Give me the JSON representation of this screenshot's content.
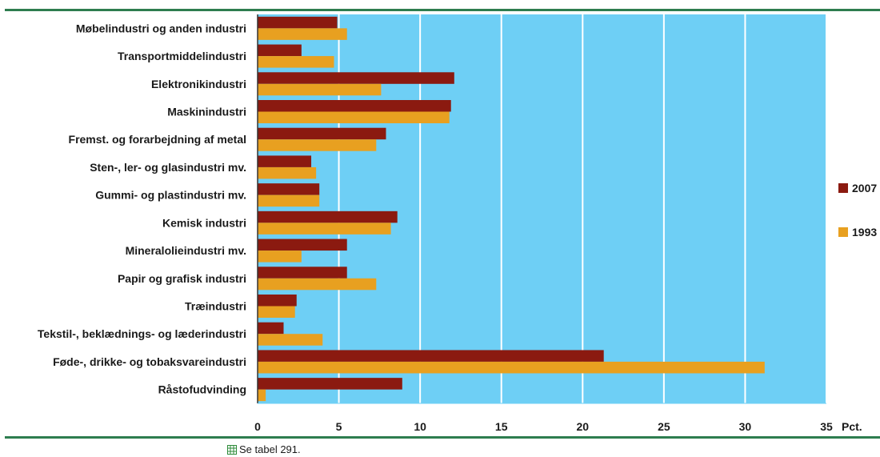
{
  "chart_data": {
    "type": "bar",
    "orientation": "horizontal",
    "categories": [
      "Møbelindustri og anden industri",
      "Transportmiddelindustri",
      "Elektronikindustri",
      "Maskinindustri",
      "Fremst. og forarbejdning af metal",
      "Sten-, ler- og glasindustri mv.",
      "Gummi- og plastindustri mv.",
      "Kemisk industri",
      "Mineralolieindustri mv.",
      "Papir og grafisk industri",
      "Træindustri",
      "Tekstil-, beklædnings- og læderindustri",
      "Føde-, drikke- og tobaksvareindustri",
      "Råstofudvinding"
    ],
    "series": [
      {
        "name": "2007",
        "color": "#8b1a10",
        "values": [
          4.9,
          2.7,
          12.1,
          11.9,
          7.9,
          3.3,
          3.8,
          8.6,
          5.5,
          5.5,
          2.4,
          1.6,
          21.3,
          8.9
        ]
      },
      {
        "name": "1993",
        "color": "#e8a020",
        "values": [
          5.5,
          4.7,
          7.6,
          11.8,
          7.3,
          3.6,
          3.8,
          8.2,
          2.7,
          7.3,
          2.3,
          4.0,
          31.2,
          0.5
        ]
      }
    ],
    "xlim": [
      0,
      35
    ],
    "xticks": [
      0,
      5,
      10,
      15,
      20,
      25,
      30,
      35
    ],
    "xunit": "Pct.",
    "grid": true,
    "plot_background": "#6ecff5",
    "legend_position": "right"
  },
  "footnote": {
    "icon": "table-icon",
    "text": "Se tabel 291."
  }
}
